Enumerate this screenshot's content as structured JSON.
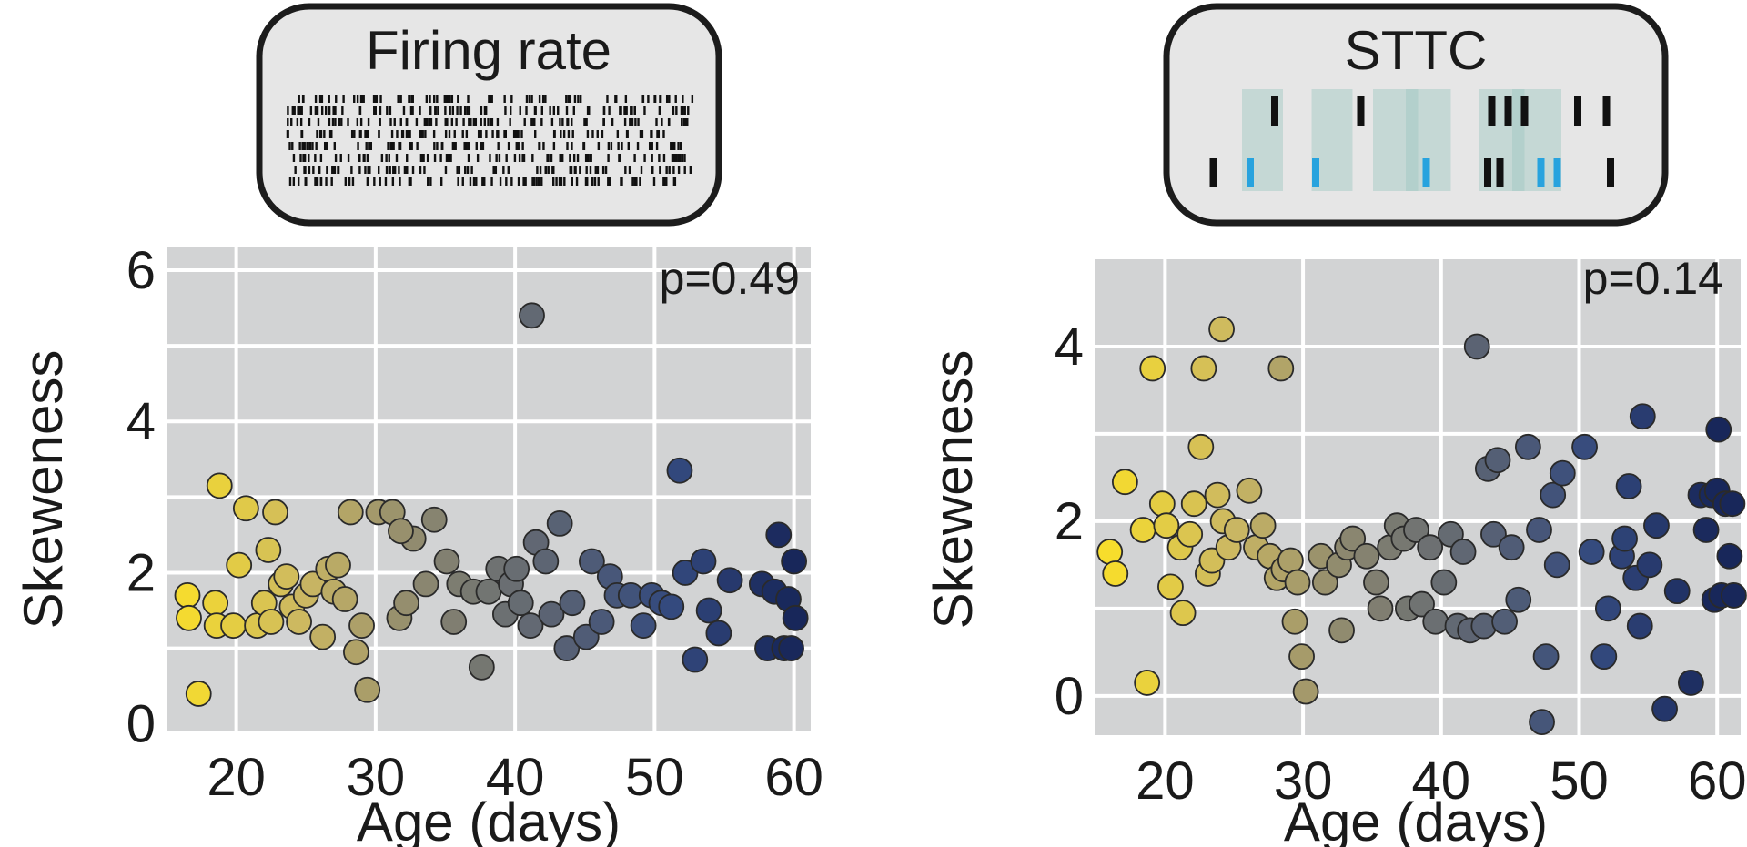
{
  "chart_data": [
    {
      "type": "scatter",
      "panel_title": "Firing rate",
      "xlabel": "Age (days)",
      "ylabel": "Skeweness",
      "annotation": "p=0.49",
      "xlim": [
        15,
        61.2
      ],
      "ylim": [
        -0.1,
        6.3
      ],
      "xticks": [
        20,
        30,
        40,
        50,
        60
      ],
      "yticks": [
        0,
        2,
        4,
        6
      ],
      "xgrid": [
        20,
        30,
        40,
        50,
        60
      ],
      "ygrid": [
        1,
        2,
        3,
        4,
        5,
        6
      ],
      "grid": true,
      "color_scale": {
        "min_age": 16,
        "max_age": 60,
        "stops": [
          "#f7dd2c",
          "#ccb862",
          "#8a8670",
          "#5c6473",
          "#344a7e",
          "#18275a"
        ]
      },
      "points": [
        [
          16.5,
          1.7
        ],
        [
          16.6,
          1.4
        ],
        [
          17.3,
          0.4
        ],
        [
          18.5,
          1.6
        ],
        [
          18.8,
          3.15
        ],
        [
          18.6,
          1.3
        ],
        [
          19.8,
          1.3
        ],
        [
          20.2,
          2.1
        ],
        [
          20.7,
          2.85
        ],
        [
          21.5,
          1.3
        ],
        [
          22,
          1.6
        ],
        [
          22.3,
          2.3
        ],
        [
          22.8,
          2.8
        ],
        [
          22.5,
          1.35
        ],
        [
          23.2,
          1.85
        ],
        [
          23.6,
          1.95
        ],
        [
          24,
          1.55
        ],
        [
          24.5,
          1.35
        ],
        [
          25,
          1.7
        ],
        [
          25.5,
          1.85
        ],
        [
          26.2,
          1.15
        ],
        [
          26.6,
          2.05
        ],
        [
          27,
          1.75
        ],
        [
          27.3,
          2.1
        ],
        [
          27.8,
          1.65
        ],
        [
          28.2,
          2.8
        ],
        [
          28.6,
          0.95
        ],
        [
          29,
          1.3
        ],
        [
          29.4,
          0.45
        ],
        [
          30.2,
          2.8
        ],
        [
          31.2,
          2.8
        ],
        [
          31.7,
          1.4
        ],
        [
          32.2,
          1.6
        ],
        [
          32.7,
          2.45
        ],
        [
          31.8,
          2.55
        ],
        [
          33.6,
          1.85
        ],
        [
          34.2,
          2.7
        ],
        [
          35.1,
          2.15
        ],
        [
          35.6,
          1.35
        ],
        [
          36,
          1.85
        ],
        [
          37,
          1.75
        ],
        [
          37.6,
          0.75
        ],
        [
          38.1,
          1.75
        ],
        [
          38.8,
          2.05
        ],
        [
          39.3,
          1.45
        ],
        [
          39.7,
          1.85
        ],
        [
          40.1,
          2.05
        ],
        [
          40.4,
          1.6
        ],
        [
          41.1,
          1.3
        ],
        [
          41.2,
          5.4
        ],
        [
          41.5,
          2.4
        ],
        [
          42.2,
          2.15
        ],
        [
          42.6,
          1.45
        ],
        [
          43.2,
          2.65
        ],
        [
          43.7,
          1.0
        ],
        [
          44.1,
          1.6
        ],
        [
          45.1,
          1.15
        ],
        [
          45.5,
          2.15
        ],
        [
          46.2,
          1.35
        ],
        [
          46.8,
          1.95
        ],
        [
          47.3,
          1.7
        ],
        [
          48.3,
          1.7
        ],
        [
          49.2,
          1.3
        ],
        [
          49.8,
          1.7
        ],
        [
          50.5,
          1.6
        ],
        [
          51.2,
          1.55
        ],
        [
          51.8,
          3.35
        ],
        [
          52.2,
          2.0
        ],
        [
          52.9,
          0.85
        ],
        [
          53.5,
          2.15
        ],
        [
          53.9,
          1.5
        ],
        [
          54.6,
          1.2
        ],
        [
          55.4,
          1.9
        ],
        [
          57.7,
          1.85
        ],
        [
          58.1,
          1.0
        ],
        [
          58.6,
          1.75
        ],
        [
          58.9,
          2.5
        ],
        [
          59.3,
          1.0
        ],
        [
          59.6,
          1.65
        ],
        [
          59.8,
          1.0
        ],
        [
          60.0,
          2.15
        ],
        [
          60.1,
          1.4
        ]
      ]
    },
    {
      "type": "scatter",
      "panel_title": "STTC",
      "xlabel": "Age (days)",
      "ylabel": "Skeweness",
      "annotation": "p=0.14",
      "xlim": [
        14.9,
        61.7
      ],
      "ylim": [
        -0.45,
        5.0
      ],
      "xticks": [
        20,
        30,
        40,
        50,
        60
      ],
      "yticks": [
        0,
        2,
        4
      ],
      "xgrid": [
        20,
        30,
        40,
        50,
        60
      ],
      "ygrid": [
        0,
        1,
        2,
        3,
        4
      ],
      "grid": true,
      "color_scale": {
        "min_age": 16,
        "max_age": 60,
        "stops": [
          "#f7dd2c",
          "#ccb862",
          "#8a8670",
          "#5c6473",
          "#344a7e",
          "#18275a"
        ]
      },
      "points": [
        [
          16,
          1.65
        ],
        [
          16.4,
          1.4
        ],
        [
          17.1,
          2.45
        ],
        [
          18.4,
          1.9
        ],
        [
          18.7,
          0.15
        ],
        [
          19.1,
          3.75
        ],
        [
          19.8,
          2.2
        ],
        [
          20.1,
          1.95
        ],
        [
          20.4,
          1.25
        ],
        [
          21.1,
          1.7
        ],
        [
          21.3,
          0.95
        ],
        [
          21.8,
          1.85
        ],
        [
          22.1,
          2.2
        ],
        [
          22.6,
          2.85
        ],
        [
          22.8,
          3.75
        ],
        [
          23.1,
          1.4
        ],
        [
          23.4,
          1.55
        ],
        [
          23.8,
          2.3
        ],
        [
          24.1,
          4.2
        ],
        [
          24.2,
          2.0
        ],
        [
          24.6,
          1.7
        ],
        [
          25.2,
          1.9
        ],
        [
          26.1,
          2.35
        ],
        [
          26.6,
          1.7
        ],
        [
          27.1,
          1.95
        ],
        [
          27.6,
          1.6
        ],
        [
          28.1,
          1.35
        ],
        [
          28.4,
          3.75
        ],
        [
          28.6,
          1.45
        ],
        [
          29.1,
          1.55
        ],
        [
          29.4,
          0.85
        ],
        [
          29.6,
          1.3
        ],
        [
          29.9,
          0.45
        ],
        [
          30.2,
          0.05
        ],
        [
          31.3,
          1.6
        ],
        [
          31.6,
          1.3
        ],
        [
          32.6,
          1.5
        ],
        [
          32.8,
          0.75
        ],
        [
          33.2,
          1.7
        ],
        [
          33.6,
          1.8
        ],
        [
          34.6,
          1.6
        ],
        [
          35.3,
          1.3
        ],
        [
          35.6,
          1.0
        ],
        [
          36.3,
          1.7
        ],
        [
          36.8,
          1.95
        ],
        [
          37.3,
          1.8
        ],
        [
          37.6,
          1.0
        ],
        [
          38.2,
          1.9
        ],
        [
          38.6,
          1.05
        ],
        [
          39.2,
          1.7
        ],
        [
          39.6,
          0.85
        ],
        [
          40.2,
          1.3
        ],
        [
          40.7,
          1.85
        ],
        [
          41.2,
          0.8
        ],
        [
          41.6,
          1.65
        ],
        [
          42.1,
          0.75
        ],
        [
          42.6,
          4.0
        ],
        [
          43.1,
          0.8
        ],
        [
          43.4,
          2.6
        ],
        [
          43.8,
          1.85
        ],
        [
          44.1,
          2.7
        ],
        [
          44.6,
          0.85
        ],
        [
          45.1,
          1.7
        ],
        [
          45.6,
          1.1
        ],
        [
          46.3,
          2.85
        ],
        [
          47.1,
          1.9
        ],
        [
          47.3,
          -0.3
        ],
        [
          47.6,
          0.45
        ],
        [
          48.1,
          2.3
        ],
        [
          48.4,
          1.5
        ],
        [
          48.8,
          2.55
        ],
        [
          50.4,
          2.85
        ],
        [
          50.9,
          1.65
        ],
        [
          51.8,
          0.45
        ],
        [
          52.1,
          1.0
        ],
        [
          53.1,
          1.6
        ],
        [
          53.3,
          1.8
        ],
        [
          53.6,
          2.4
        ],
        [
          54.1,
          1.35
        ],
        [
          54.4,
          0.8
        ],
        [
          54.6,
          3.2
        ],
        [
          55.1,
          1.5
        ],
        [
          55.6,
          1.95
        ],
        [
          56.2,
          -0.15
        ],
        [
          57.1,
          1.2
        ],
        [
          58.1,
          0.15
        ],
        [
          58.8,
          2.3
        ],
        [
          59.2,
          1.9
        ],
        [
          59.6,
          2.3
        ],
        [
          59.8,
          1.1
        ],
        [
          60.0,
          2.35
        ],
        [
          60.1,
          3.05
        ],
        [
          60.3,
          1.15
        ],
        [
          60.6,
          2.2
        ],
        [
          60.9,
          1.6
        ],
        [
          61.2,
          1.15
        ],
        [
          61.1,
          2.2
        ]
      ]
    }
  ],
  "raster_inset": {
    "rows": 8,
    "ticks_per_row": 75,
    "x_range_frac": [
      0.02,
      0.98
    ]
  },
  "sttc_inset": {
    "black_row_top": [
      0.18,
      0.39,
      0.71,
      0.75,
      0.79,
      0.92,
      0.99
    ],
    "black_row_bottom": [
      0.03,
      0.7,
      0.73,
      1.0
    ],
    "blue_row_bottom": [
      0.12,
      0.28,
      0.55,
      0.83,
      0.87
    ],
    "windows": [
      [
        0.1,
        0.2
      ],
      [
        0.27,
        0.37
      ],
      [
        0.42,
        0.53
      ],
      [
        0.5,
        0.61
      ],
      [
        0.68,
        0.79
      ],
      [
        0.76,
        0.88
      ]
    ]
  }
}
